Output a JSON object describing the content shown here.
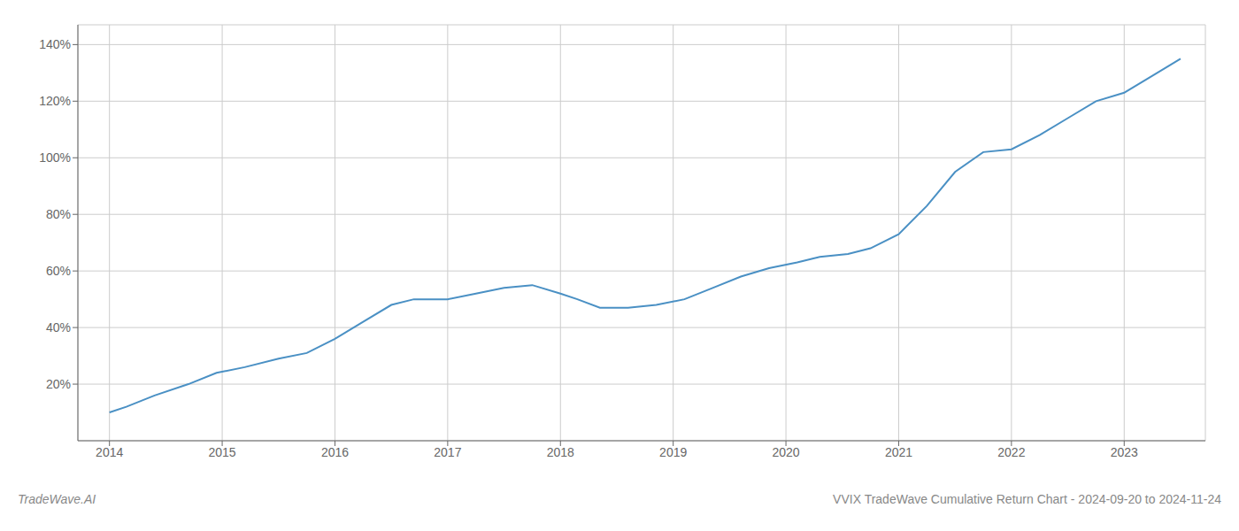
{
  "chart_data": {
    "type": "line",
    "title": "VVIX TradeWave Cumulative Return Chart - 2024-09-20 to 2024-11-24",
    "annotations": [
      "TradeWave.AI"
    ],
    "color": "#4a90c4",
    "grid": true,
    "x": [
      2014.0,
      2014.15,
      2014.4,
      2014.7,
      2014.95,
      2015.2,
      2015.5,
      2015.75,
      2016.0,
      2016.25,
      2016.5,
      2016.7,
      2017.0,
      2017.25,
      2017.5,
      2017.75,
      2018.0,
      2018.15,
      2018.35,
      2018.6,
      2018.85,
      2019.1,
      2019.35,
      2019.6,
      2019.85,
      2020.1,
      2020.3,
      2020.55,
      2020.75,
      2021.0,
      2021.25,
      2021.5,
      2021.75,
      2022.0,
      2022.25,
      2022.5,
      2022.75,
      2023.0,
      2023.25,
      2023.5
    ],
    "values": [
      10,
      12,
      16,
      20,
      24,
      26,
      29,
      31,
      36,
      42,
      48,
      50,
      50,
      52,
      54,
      55,
      52,
      50,
      47,
      47,
      48,
      50,
      54,
      58,
      61,
      63,
      65,
      66,
      68,
      73,
      83,
      95,
      102,
      103,
      108,
      114,
      120,
      123,
      129,
      135
    ],
    "xlim": [
      2013.72,
      2023.72
    ],
    "xticks": [
      2014,
      2015,
      2016,
      2017,
      2018,
      2019,
      2020,
      2021,
      2022,
      2023
    ],
    "ylim": [
      0,
      147
    ],
    "yticks": [
      {
        "value": 20,
        "label": "20%"
      },
      {
        "value": 40,
        "label": "40%"
      },
      {
        "value": 60,
        "label": "60%"
      },
      {
        "value": 80,
        "label": "80%"
      },
      {
        "value": 100,
        "label": "100%"
      },
      {
        "value": 120,
        "label": "120%"
      },
      {
        "value": 140,
        "label": "140%"
      }
    ]
  }
}
